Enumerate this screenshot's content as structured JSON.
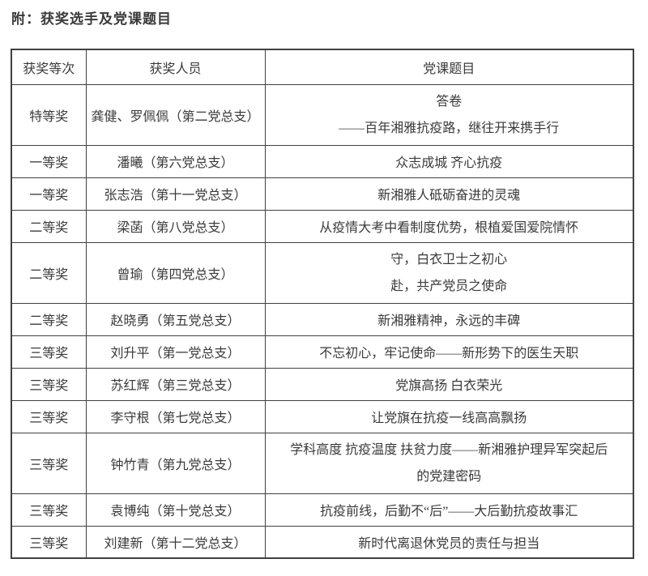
{
  "page": {
    "title": "附：获奖选手及党课题目"
  },
  "table": {
    "headers": [
      "获奖等次",
      "获奖人员",
      "党课题目"
    ],
    "rows": [
      {
        "award": "特等奖",
        "person": "龚健、罗佩佩（第二党总支）",
        "topic_lines": [
          "答卷",
          "——百年湘雅抗疫路，继往开来携手行"
        ]
      },
      {
        "award": "一等奖",
        "person": "潘曦（第六党总支）",
        "topic_lines": [
          "众志成城 齐心抗疫"
        ]
      },
      {
        "award": "一等奖",
        "person": "张志浩（第十一党总支）",
        "topic_lines": [
          "新湘雅人砥砺奋进的灵魂"
        ]
      },
      {
        "award": "二等奖",
        "person": "梁菡（第八党总支）",
        "topic_lines": [
          "从疫情大考中看制度优势，根植爱国爱院情怀"
        ]
      },
      {
        "award": "二等奖",
        "person": "曾瑜（第四党总支）",
        "topic_lines": [
          "守，白衣卫士之初心",
          "赴，共产党员之使命"
        ]
      },
      {
        "award": "二等奖",
        "person": "赵晓勇（第五党总支）",
        "topic_lines": [
          "新湘雅精神，永远的丰碑"
        ]
      },
      {
        "award": "三等奖",
        "person": "刘升平（第一党总支）",
        "topic_lines": [
          "不忘初心，牢记使命——新形势下的医生天职"
        ]
      },
      {
        "award": "三等奖",
        "person": "苏红辉（第三党总支）",
        "topic_lines": [
          "党旗高扬 白衣荣光"
        ]
      },
      {
        "award": "三等奖",
        "person": "李守根（第七党总支）",
        "topic_lines": [
          "让党旗在抗疫一线高高飘扬"
        ]
      },
      {
        "award": "三等奖",
        "person": "钟竹青（第九党总支）",
        "topic_lines": [
          "学科高度 抗疫温度 扶贫力度——新湘雅护理异军突起后",
          "的党建密码"
        ]
      },
      {
        "award": "三等奖",
        "person": "袁博纯（第十党总支）",
        "topic_lines": [
          "抗疫前线，后勤不“后”——大后勤抗疫故事汇"
        ]
      },
      {
        "award": "三等奖",
        "person": "刘建新（第十二党总支）",
        "topic_lines": [
          "新时代离退休党员的责任与担当"
        ]
      }
    ]
  },
  "colors": {
    "text": "#3a3a3a",
    "border": "#404040",
    "background": "#ffffff"
  }
}
